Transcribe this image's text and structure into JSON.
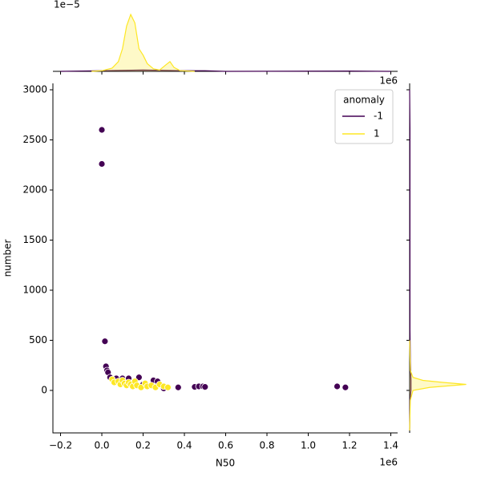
{
  "chart_data": {
    "type": "scatter",
    "x_label": "N50",
    "y_label": "number",
    "x_offset": "1e6",
    "legend_title": "anomaly",
    "legend_loc": "upper right",
    "xlim": [
      -0.237,
      1.433
    ],
    "ylim": [
      -424,
      3064
    ],
    "xticks": [
      {
        "value": -0.2,
        "label": "−0.2"
      },
      {
        "value": 0,
        "label": "0.0"
      },
      0.2,
      0.4,
      0.6,
      0.8,
      {
        "value": 1,
        "label": "1.0"
      },
      1.2,
      1.4
    ],
    "yticks": [
      0,
      500,
      1000,
      1500,
      2000,
      2500,
      3000
    ],
    "series": [
      {
        "name": "-1",
        "color": "#440154",
        "x": [
          0.0,
          0.0,
          0.015,
          0.02,
          0.025,
          0.03,
          0.04,
          0.07,
          0.1,
          0.13,
          0.18,
          0.2,
          0.25,
          0.27,
          0.3,
          0.37,
          0.45,
          0.47,
          0.49,
          0.5,
          1.14,
          1.18
        ],
        "values": [
          2600,
          2260,
          490,
          240,
          200,
          180,
          130,
          120,
          120,
          120,
          130,
          60,
          100,
          90,
          20,
          30,
          35,
          40,
          40,
          35,
          40,
          30
        ]
      },
      {
        "name": "1",
        "color": "#fde725",
        "x": [
          0.05,
          0.06,
          0.08,
          0.09,
          0.1,
          0.11,
          0.12,
          0.13,
          0.14,
          0.15,
          0.16,
          0.17,
          0.19,
          0.21,
          0.22,
          0.24,
          0.26,
          0.28,
          0.3,
          0.32
        ],
        "values": [
          110,
          80,
          90,
          60,
          100,
          70,
          50,
          80,
          60,
          40,
          90,
          50,
          30,
          70,
          40,
          50,
          30,
          60,
          40,
          30
        ]
      }
    ],
    "marginal_x": {
      "y_offset": "1e−5",
      "ylim": [
        0,
        0.98
      ],
      "curves": [
        {
          "x": [
            -0.2,
            0.0,
            0.2,
            0.4,
            0.5,
            0.6,
            1.2,
            1.4
          ],
          "values": [
            0,
            0.01,
            0.02,
            0.01,
            0.01,
            0,
            0.005,
            0
          ]
        },
        {
          "x": [
            -0.05,
            0.0,
            0.05,
            0.08,
            0.1,
            0.12,
            0.14,
            0.16,
            0.18,
            0.2,
            0.22,
            0.25,
            0.28,
            0.31,
            0.33,
            0.35,
            0.38,
            0.45
          ],
          "values": [
            0,
            0.01,
            0.05,
            0.15,
            0.35,
            0.7,
            0.88,
            0.75,
            0.35,
            0.25,
            0.12,
            0.04,
            0.02,
            0.1,
            0.15,
            0.06,
            0.01,
            0
          ]
        }
      ]
    },
    "marginal_y": {
      "xlim": [
        0,
        1
      ],
      "curves": [
        {
          "y": [
            -400,
            -100,
            0,
            100,
            300,
            600,
            2300,
            2600,
            3000
          ],
          "values": [
            0,
            0.005,
            0.02,
            0.02,
            0.01,
            0.005,
            0.005,
            0.005,
            0
          ]
        },
        {
          "y": [
            -400,
            -100,
            0,
            30,
            60,
            80,
            100,
            130,
            200,
            500
          ],
          "values": [
            0,
            0.01,
            0.05,
            0.3,
            0.85,
            0.5,
            0.2,
            0.05,
            0.01,
            0
          ]
        }
      ]
    }
  }
}
